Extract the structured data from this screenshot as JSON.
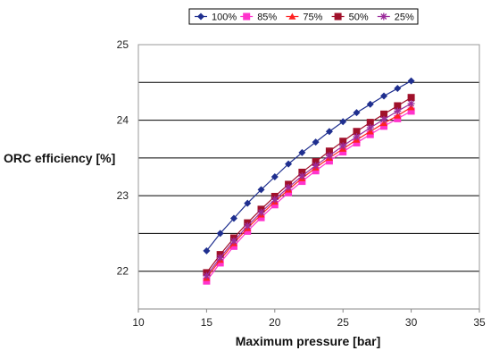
{
  "chart_data": {
    "type": "line",
    "title": "",
    "xlabel": "Maximum pressure [bar]",
    "ylabel": "ORC efficiency [%]",
    "xlim": [
      10,
      35
    ],
    "ylim": [
      21.5,
      25
    ],
    "x_ticks": [
      10,
      15,
      20,
      25,
      30,
      35
    ],
    "y_ticks": [
      22,
      23,
      24,
      25
    ],
    "y_gridlines": [
      22,
      22.5,
      23,
      23.5,
      24,
      24.5,
      25
    ],
    "grid": "horizontal",
    "legend_position": "top",
    "x": [
      15,
      16,
      17,
      18,
      19,
      20,
      21,
      22,
      23,
      24,
      25,
      26,
      27,
      28,
      29,
      30
    ],
    "series": [
      {
        "name": "100%",
        "color": "#1f2f8f",
        "marker": "diamond",
        "values": [
          22.27,
          22.5,
          22.7,
          22.9,
          23.08,
          23.25,
          23.42,
          23.57,
          23.71,
          23.85,
          23.98,
          24.1,
          24.21,
          24.32,
          24.42,
          24.52
        ]
      },
      {
        "name": "85%",
        "color": "#ff33cc",
        "marker": "square",
        "values": [
          21.87,
          22.11,
          22.33,
          22.53,
          22.71,
          22.88,
          23.04,
          23.19,
          23.33,
          23.46,
          23.58,
          23.7,
          23.81,
          23.92,
          24.02,
          24.12
        ]
      },
      {
        "name": "75%",
        "color": "#ff2222",
        "marker": "triangle",
        "values": [
          21.91,
          22.15,
          22.37,
          22.57,
          22.75,
          22.92,
          23.08,
          23.23,
          23.37,
          23.5,
          23.62,
          23.74,
          23.85,
          23.96,
          24.06,
          24.17
        ]
      },
      {
        "name": "50%",
        "color": "#a0102a",
        "marker": "square",
        "values": [
          21.98,
          22.22,
          22.44,
          22.64,
          22.82,
          22.99,
          23.15,
          23.31,
          23.45,
          23.59,
          23.72,
          23.85,
          23.97,
          24.08,
          24.19,
          24.3
        ]
      },
      {
        "name": "25%",
        "color": "#9b2c9b",
        "marker": "asterisk",
        "values": [
          21.94,
          22.18,
          22.4,
          22.6,
          22.78,
          22.95,
          23.11,
          23.26,
          23.4,
          23.53,
          23.66,
          23.78,
          23.9,
          24.01,
          24.12,
          24.22
        ]
      }
    ]
  }
}
